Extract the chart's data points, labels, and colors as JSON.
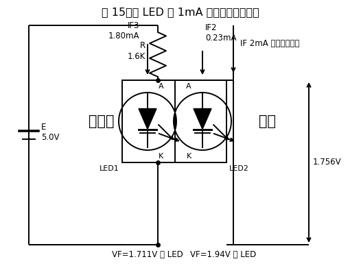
{
  "title": "図 15　各 LED に 1mA 流すつもりの実験",
  "title_fontsize": 11.5,
  "fig_bg": "#ffffff",
  "text_color": "#000000",
  "line_color": "#000000",
  "line_width": 1.4,
  "labels": {
    "R": "R\n1.6K",
    "E": "E\n5.0V",
    "IF3": "IF3\n1.80mA",
    "IF2": "IF2\n0.23mA",
    "IF2mA": "IF 2mA を流すつもり",
    "bright": "明るい",
    "dark": "暗い",
    "LED1": "LED1",
    "LED2": "LED2",
    "A": "A",
    "K": "K",
    "VF1": "VF=1.711V の LED",
    "VF2": "VF=1.94V の LED",
    "V_dim": "1.756V"
  }
}
